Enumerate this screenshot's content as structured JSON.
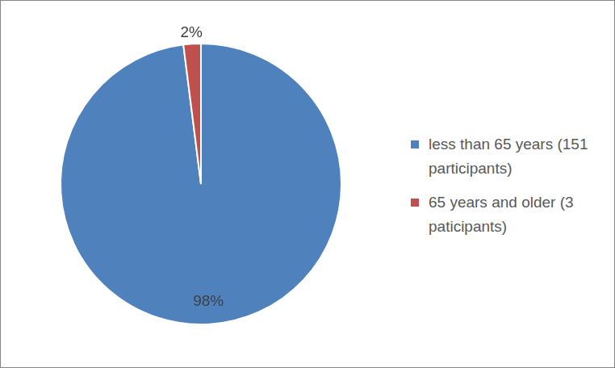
{
  "chart_data": {
    "type": "pie",
    "categories": [
      "less than 65 years (151 participants)",
      "65 years and older (3 paticipants)"
    ],
    "values": [
      98,
      2
    ],
    "value_labels": [
      "98%",
      "2%"
    ],
    "colors": [
      "#4f81bd",
      "#c0504d"
    ],
    "legend": "right",
    "data_labels": true
  }
}
